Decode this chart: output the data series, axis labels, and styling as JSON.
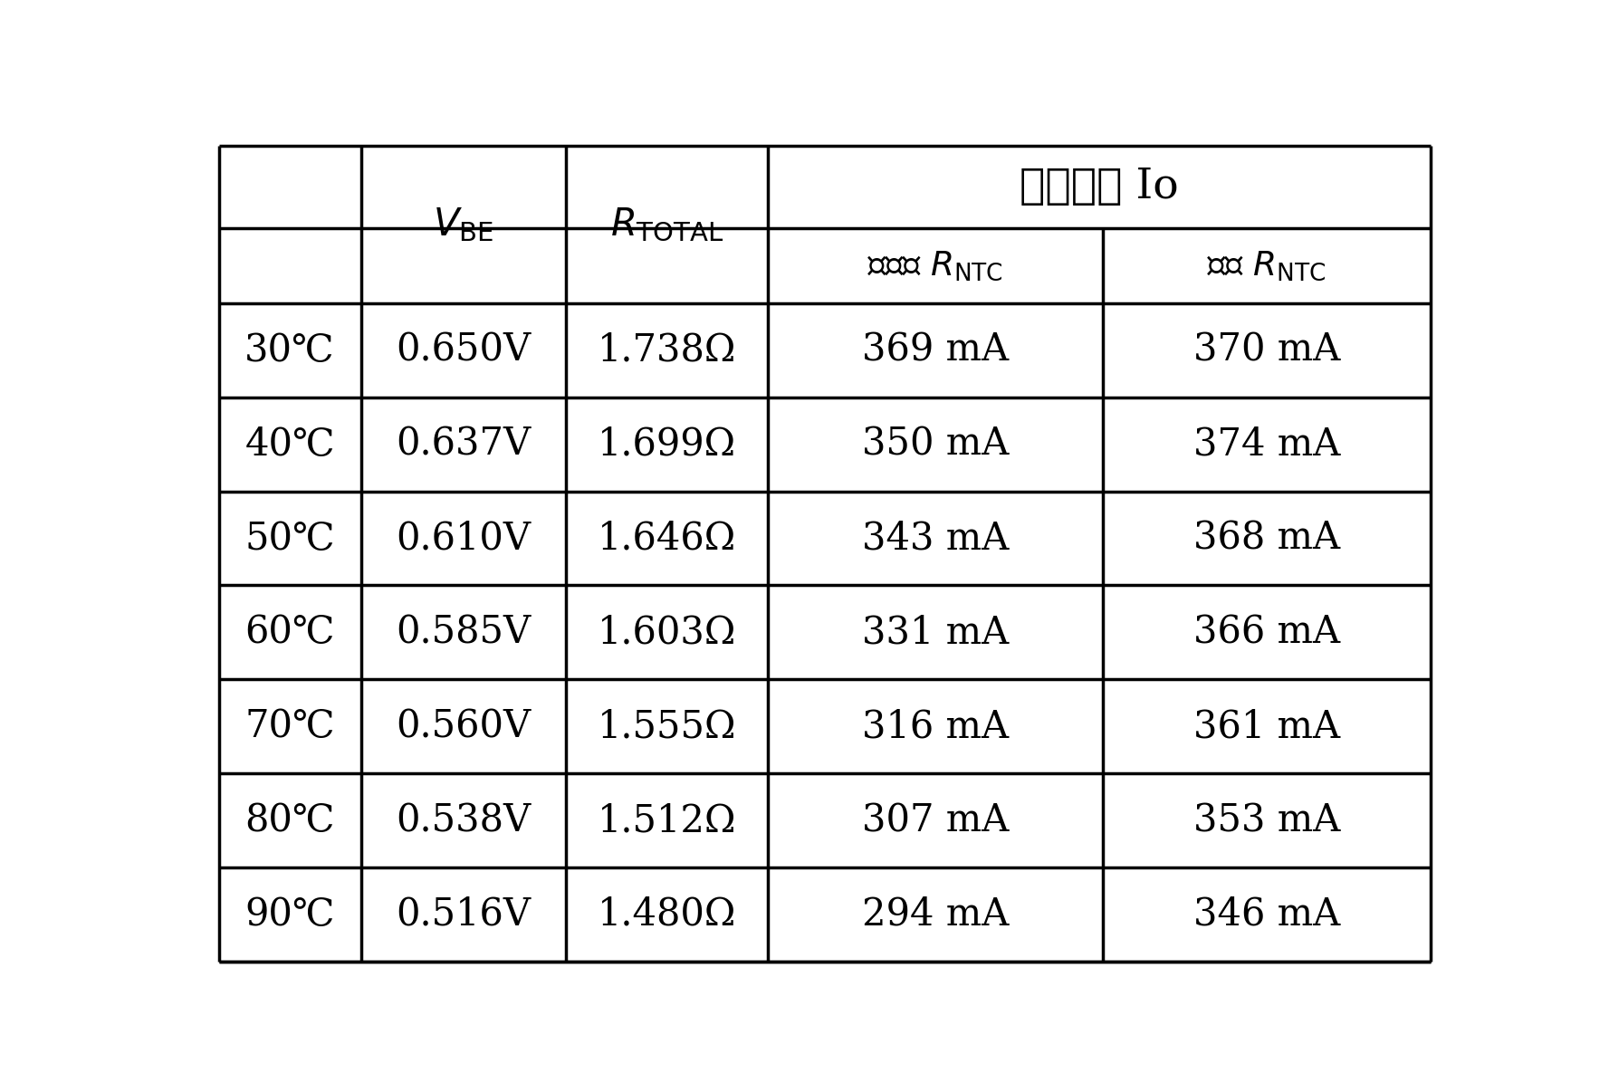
{
  "temperatures": [
    "30℃",
    "40℃",
    "50℃",
    "60℃",
    "70℃",
    "80℃",
    "90℃"
  ],
  "vbe": [
    "0.650V",
    "0.637V",
    "0.610V",
    "0.585V",
    "0.560V",
    "0.538V",
    "0.516V"
  ],
  "rtotal": [
    "1.738Ω",
    "1.699Ω",
    "1.646Ω",
    "1.603Ω",
    "1.555Ω",
    "1.512Ω",
    "1.480Ω"
  ],
  "io_no_ntc": [
    "369 mA",
    "350 mA",
    "343 mA",
    "331 mA",
    "316 mA",
    "307 mA",
    "294 mA"
  ],
  "io_with_ntc": [
    "370 mA",
    "374 mA",
    "368 mA",
    "366 mA",
    "361 mA",
    "353 mA",
    "346 mA"
  ],
  "bg_color": "#ffffff",
  "line_color": "#000000",
  "text_color": "#000000",
  "fig_width": 17.77,
  "fig_height": 12.06,
  "dpi": 100
}
